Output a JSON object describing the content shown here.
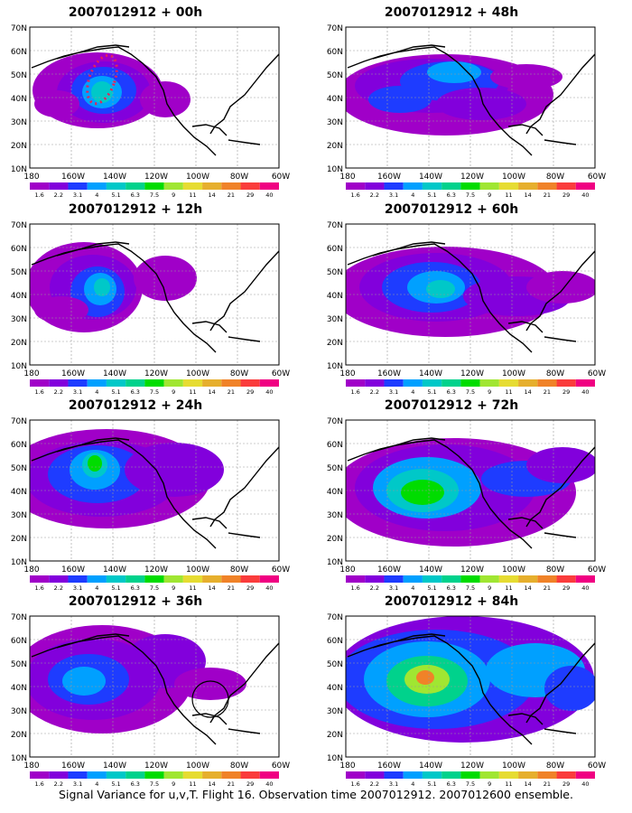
{
  "panel_titles": [
    "2007012912 + 00h",
    "2007012912 + 48h",
    "2007012912 + 12h",
    "2007012912 + 60h",
    "2007012912 + 24h",
    "2007012912 + 72h",
    "2007012912 + 36h",
    "2007012912 + 84h"
  ],
  "lat_ticks": [
    "70N",
    "60N",
    "50N",
    "40N",
    "30N",
    "20N",
    "10N"
  ],
  "lon_ticks": [
    "180",
    "160W",
    "140W",
    "120W",
    "100W",
    "80W",
    "60W"
  ],
  "colorbar_labels": [
    "1.6",
    "2.2",
    "3.1",
    "4",
    "5.1",
    "6.3",
    "7.5",
    "9",
    "11",
    "14",
    "21",
    "29",
    "40"
  ],
  "colorbar_colors": [
    "#a000c8",
    "#8200dc",
    "#1e3cff",
    "#00a0ff",
    "#00c8c8",
    "#00d28c",
    "#00dc00",
    "#a0e632",
    "#e6dc32",
    "#e6af2d",
    "#f08228",
    "#fa3c3c",
    "#f00082"
  ],
  "caption": "Signal Variance for u,v,T. Flight 16. Observation time 2007012912. 2007012600 ensemble.",
  "chart_data": [
    {
      "type": "heatmap",
      "title": "2007012912 + 00h",
      "lon_range": [
        "180",
        "60W"
      ],
      "lat_range": [
        "10N",
        "70N"
      ],
      "peak_value": 6.3,
      "notes": "flight track dotted in red/magenta"
    },
    {
      "type": "heatmap",
      "title": "2007012912 + 48h",
      "lon_range": [
        "180",
        "60W"
      ],
      "lat_range": [
        "10N",
        "70N"
      ],
      "peak_value": 6.3
    },
    {
      "type": "heatmap",
      "title": "2007012912 + 12h",
      "lon_range": [
        "180",
        "60W"
      ],
      "lat_range": [
        "10N",
        "70N"
      ],
      "peak_value": 7.5
    },
    {
      "type": "heatmap",
      "title": "2007012912 + 60h",
      "lon_range": [
        "180",
        "60W"
      ],
      "lat_range": [
        "10N",
        "70N"
      ],
      "peak_value": 7.5
    },
    {
      "type": "heatmap",
      "title": "2007012912 + 24h",
      "lon_range": [
        "180",
        "60W"
      ],
      "lat_range": [
        "10N",
        "70N"
      ],
      "peak_value": 9
    },
    {
      "type": "heatmap",
      "title": "2007012912 + 72h",
      "lon_range": [
        "180",
        "60W"
      ],
      "lat_range": [
        "10N",
        "70N"
      ],
      "peak_value": 11
    },
    {
      "type": "heatmap",
      "title": "2007012912 + 36h",
      "lon_range": [
        "180",
        "60W"
      ],
      "lat_range": [
        "10N",
        "70N"
      ],
      "peak_value": 7.5,
      "notes": "circle outline near 30N 100W"
    },
    {
      "type": "heatmap",
      "title": "2007012912 + 84h",
      "lon_range": [
        "180",
        "60W"
      ],
      "lat_range": [
        "10N",
        "70N"
      ],
      "peak_value": 14
    }
  ]
}
